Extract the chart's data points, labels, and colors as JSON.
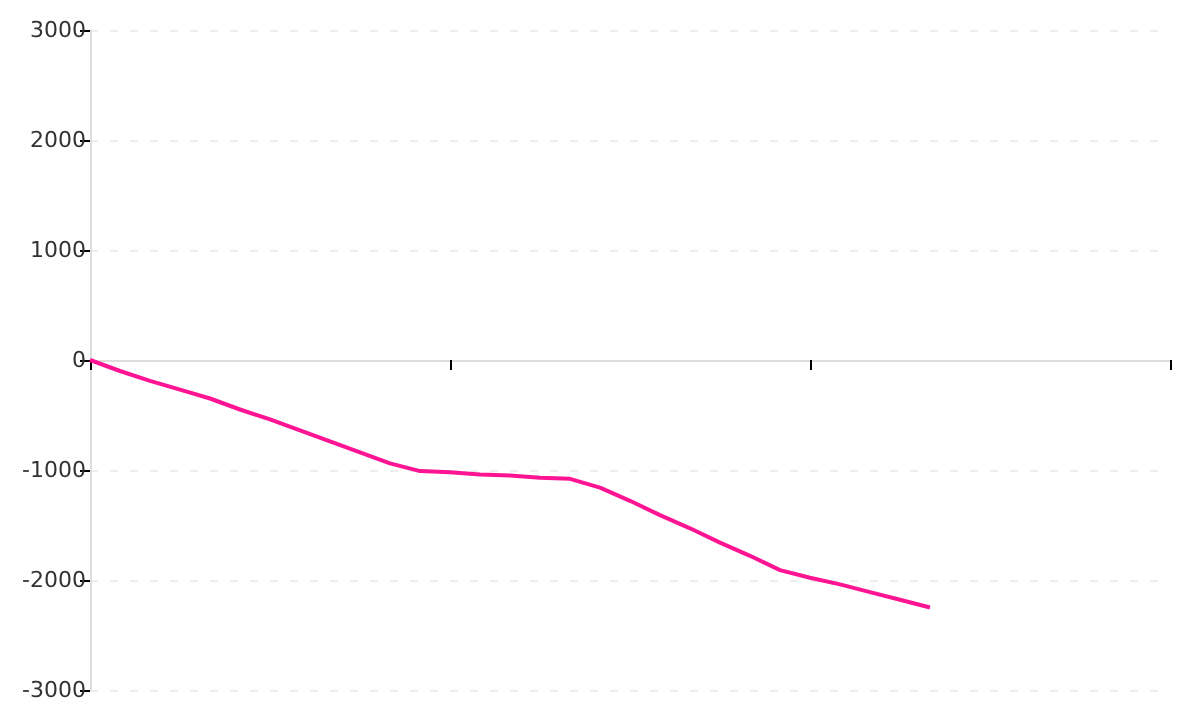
{
  "chart_data": {
    "type": "line",
    "categories": [
      null,
      null,
      null,
      null,
      null,
      null,
      null,
      null,
      null,
      null,
      null,
      null,
      null,
      null,
      null,
      null,
      null,
      null,
      null,
      null,
      null,
      null,
      null,
      null,
      null,
      null,
      null,
      null,
      null,
      null,
      null,
      null,
      null,
      null,
      null,
      null,
      null
    ],
    "series": [
      {
        "color": "#ff1493",
        "values": [
          0,
          -100,
          -190,
          -270,
          -350,
          -450,
          -540,
          -640,
          -740,
          -840,
          -940,
          -1010,
          -1020,
          -1040,
          -1050,
          -1070,
          -1080,
          -1160,
          -1280,
          -1410,
          -1530,
          -1660,
          -1780,
          -1910,
          -1980,
          -2040,
          -2110,
          -2180,
          -2250,
          null,
          null,
          null,
          null,
          null,
          null,
          null,
          null
        ]
      }
    ],
    "ylim": [
      -3000,
      3000
    ],
    "yticks": [
      -3000,
      -2000,
      -1000,
      0,
      1000,
      2000,
      3000
    ],
    "tick_labels": "y",
    "grid": "y",
    "marker": "none",
    "line_style": "solid"
  }
}
